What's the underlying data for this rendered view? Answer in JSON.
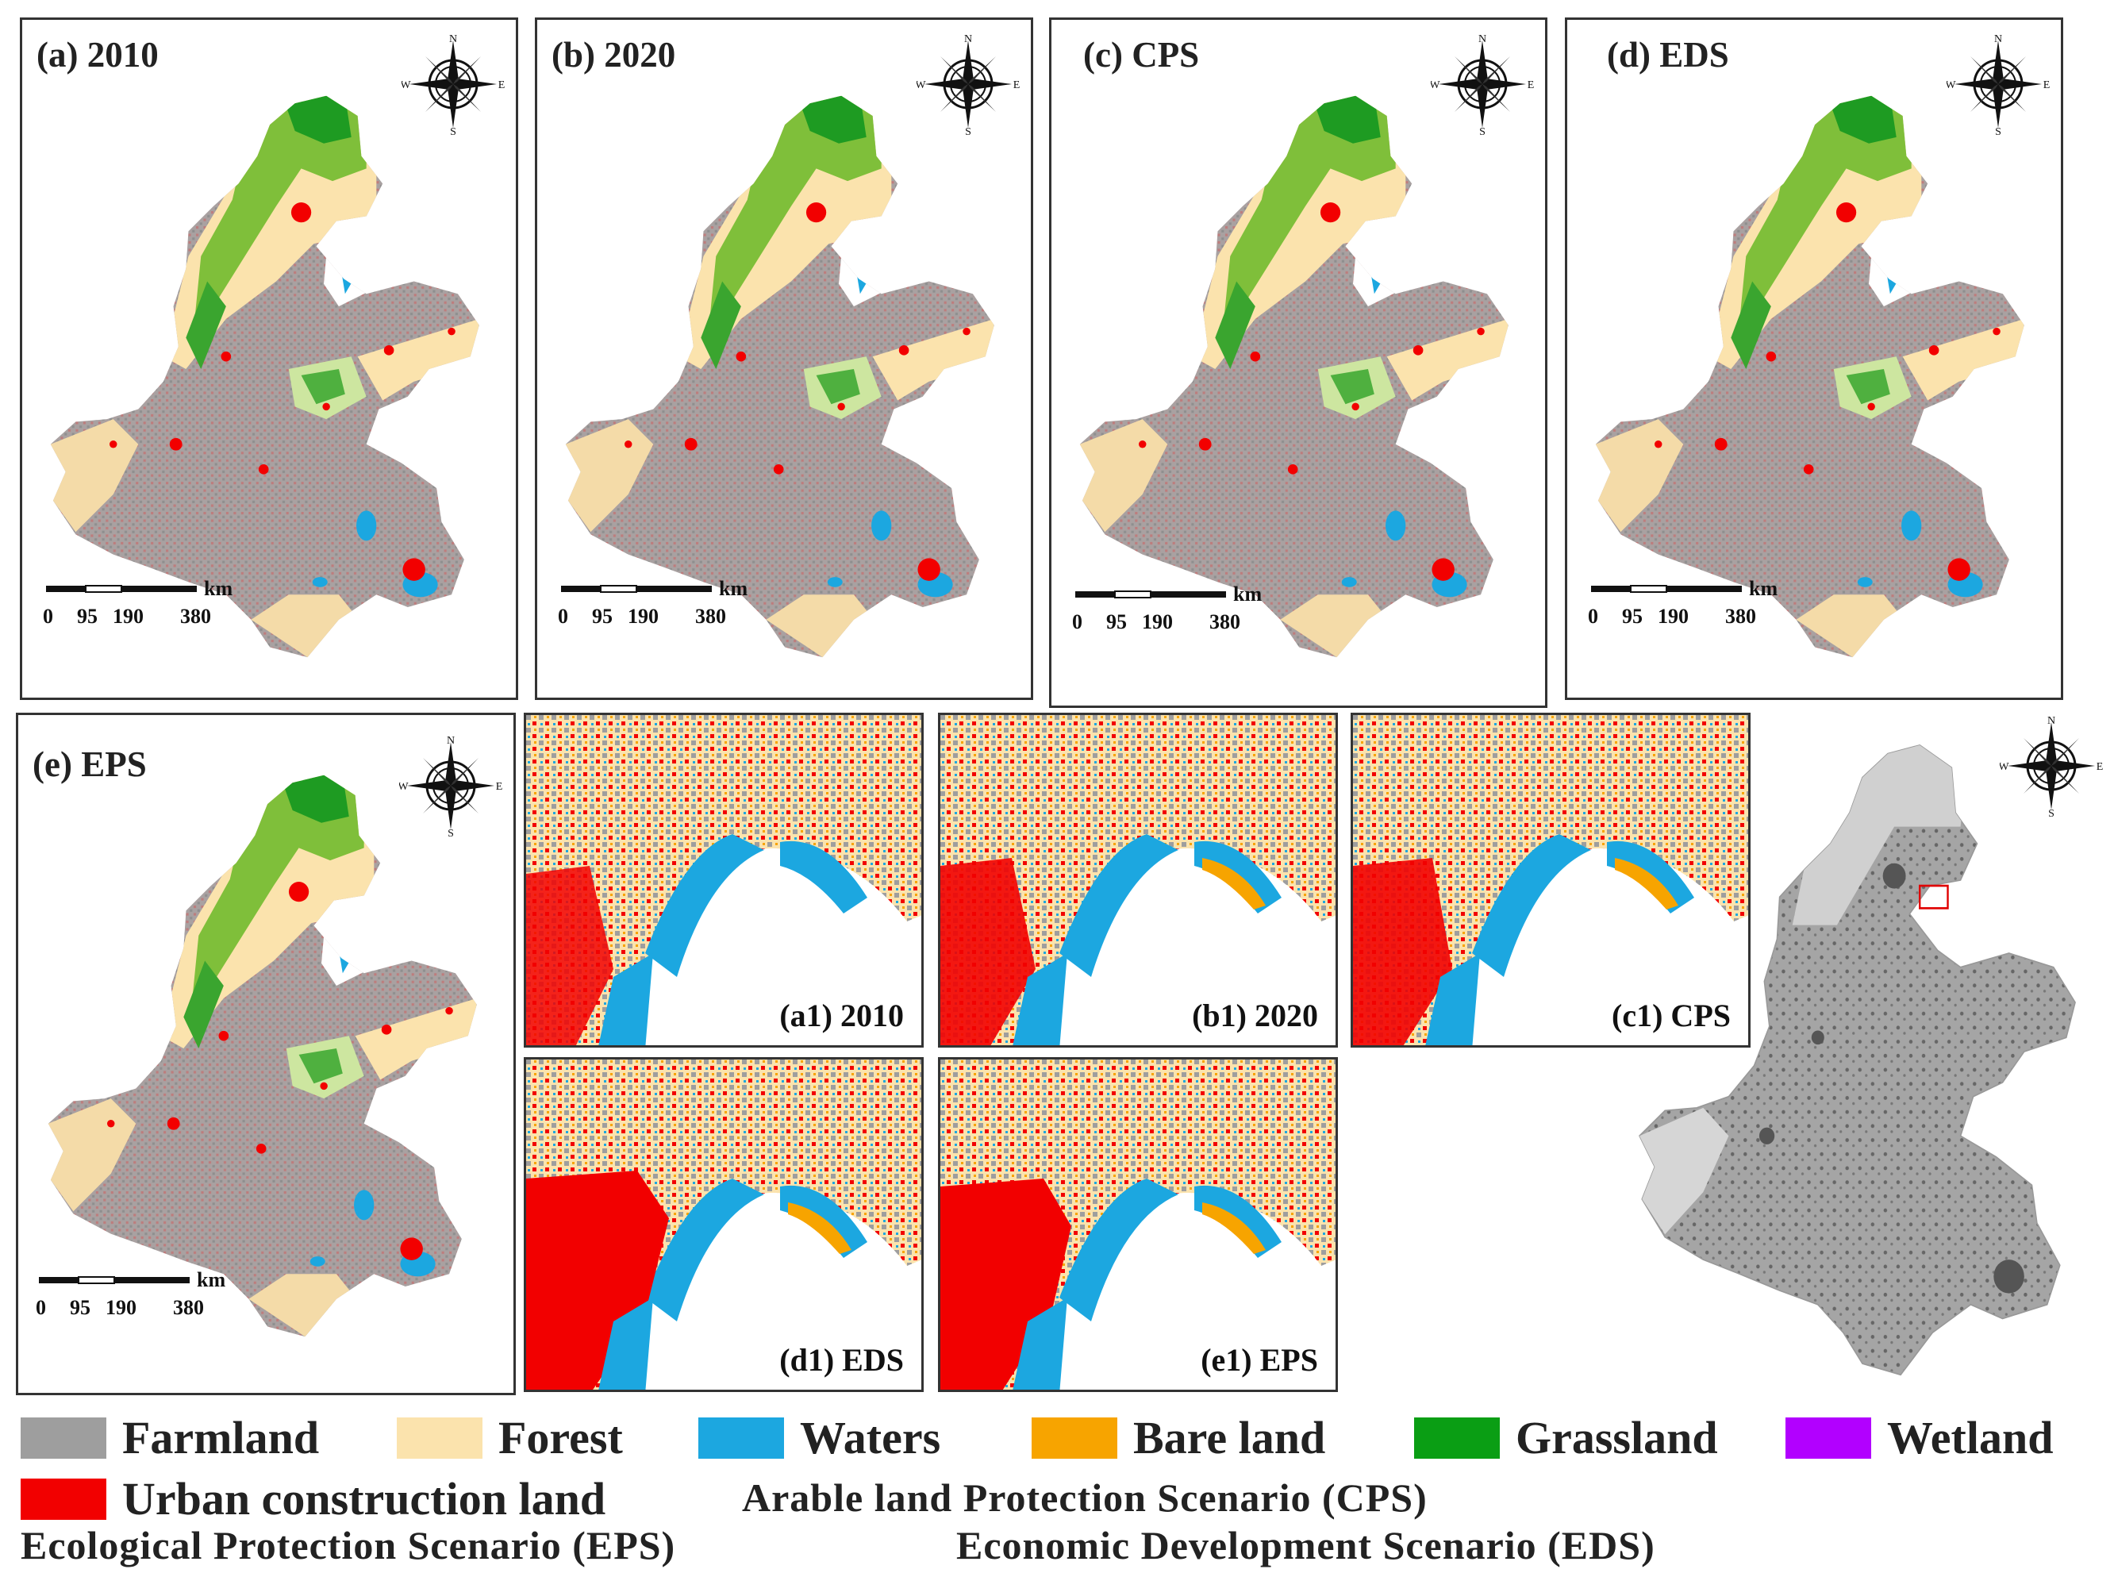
{
  "panels": [
    {
      "id": "a",
      "title": "(a) 2010"
    },
    {
      "id": "b",
      "title": "(b) 2020"
    },
    {
      "id": "c",
      "title": "(c) CPS"
    },
    {
      "id": "d",
      "title": "(d) EDS"
    },
    {
      "id": "e",
      "title": "(e) EPS"
    }
  ],
  "insets": [
    {
      "id": "a1",
      "label": "(a1) 2010"
    },
    {
      "id": "b1",
      "label": "(b1) 2020"
    },
    {
      "id": "c1",
      "label": "(c1) CPS"
    },
    {
      "id": "d1",
      "label": "(d1) EDS"
    },
    {
      "id": "e1",
      "label": "(e1) EPS"
    }
  ],
  "compass": {
    "n": "N",
    "s": "S",
    "e": "E",
    "w": "W"
  },
  "scalebar": {
    "unit": "km",
    "ticks": [
      "0",
      "95",
      "190",
      "380"
    ]
  },
  "legend": [
    {
      "label": "Farmland",
      "color": "#9e9e9e"
    },
    {
      "label": "Forest",
      "color": "#fbe3ad"
    },
    {
      "label": "Waters",
      "color": "#1ca7e0"
    },
    {
      "label": "Bare land",
      "color": "#f7a400"
    },
    {
      "label": "Grassland",
      "color": "#0a9e14"
    },
    {
      "label": "Wetland",
      "color": "#b200ff"
    },
    {
      "label": "Urban construction land",
      "color": "#f20000"
    }
  ],
  "scenario_notes": {
    "cps": "Arable land Protection Scenario (CPS)",
    "eps": "Ecological Protection Scenario (EPS)",
    "eds": "Economic Development Scenario (EDS)"
  }
}
